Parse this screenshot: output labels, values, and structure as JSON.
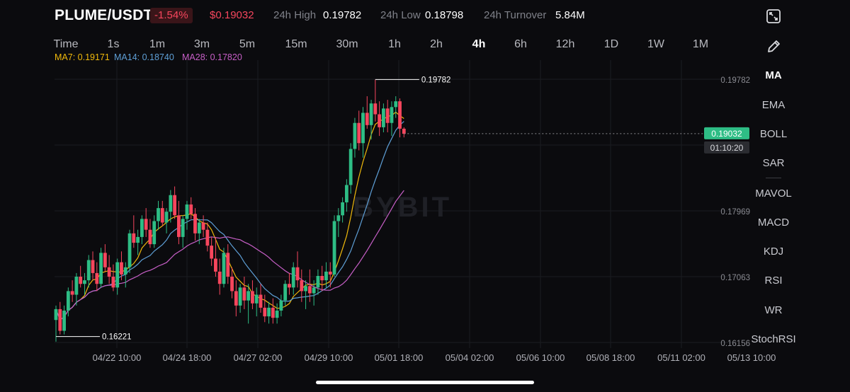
{
  "header": {
    "pair": "PLUME/USDT",
    "change": "-1.54%",
    "price": "$0.19032",
    "high_label": "24h High",
    "high_value": "0.19782",
    "low_label": "24h Low",
    "low_value": "0.18798",
    "turnover_label": "24h Turnover",
    "turnover_value": "5.84M"
  },
  "timeframes": [
    "Time",
    "1s",
    "1m",
    "3m",
    "5m",
    "15m",
    "30m",
    "1h",
    "2h",
    "4h",
    "6h",
    "12h",
    "1D",
    "1W",
    "1M"
  ],
  "active_timeframe": "4h",
  "ma_legend": [
    {
      "label": "MA7: 0.19171",
      "color": "#f0b90b"
    },
    {
      "label": "MA14: 0.18740",
      "color": "#5e9fd6"
    },
    {
      "label": "MA28: 0.17820",
      "color": "#c75fc7"
    }
  ],
  "sidebar": {
    "items": [
      "MA",
      "EMA",
      "BOLL",
      "SAR",
      "MAVOL",
      "MACD",
      "KDJ",
      "RSI",
      "WR",
      "StochRSI"
    ],
    "active": "MA",
    "icons": [
      "expand-icon",
      "pencil-icon"
    ]
  },
  "colors": {
    "up": "#2ebd85",
    "down": "#f6465d",
    "background": "#0b0b0e"
  },
  "chart_data": {
    "type": "candlestick",
    "y_ticks": [
      "0.19782",
      "0.17969",
      "0.17063",
      "0.16156"
    ],
    "x_ticks": [
      "04/22 10:00",
      "04/24 18:00",
      "04/27 02:00",
      "04/29 10:00",
      "05/01 18:00",
      "05/04 02:00",
      "05/06 10:00",
      "05/08 18:00",
      "05/11 02:00",
      "05/13 10:00"
    ],
    "current_price": "0.19032",
    "countdown": "01:10:20",
    "high_marker": "0.19782",
    "low_marker": "0.16221",
    "watermark": "BYBIT",
    "ylim": [
      0.1606,
      0.2005
    ],
    "candles": [
      [
        0.1645,
        0.1665,
        0.1615,
        0.166
      ],
      [
        0.166,
        0.167,
        0.1625,
        0.163
      ],
      [
        0.163,
        0.1665,
        0.1625,
        0.1658
      ],
      [
        0.1658,
        0.169,
        0.165,
        0.1685
      ],
      [
        0.1685,
        0.17,
        0.167,
        0.168
      ],
      [
        0.168,
        0.171,
        0.1665,
        0.1705
      ],
      [
        0.1705,
        0.172,
        0.169,
        0.1695
      ],
      [
        0.1695,
        0.171,
        0.168,
        0.17
      ],
      [
        0.17,
        0.1735,
        0.169,
        0.1728
      ],
      [
        0.1728,
        0.174,
        0.17,
        0.171
      ],
      [
        0.171,
        0.1725,
        0.1685,
        0.1695
      ],
      [
        0.1695,
        0.1745,
        0.169,
        0.1738
      ],
      [
        0.1738,
        0.175,
        0.1712,
        0.1718
      ],
      [
        0.1718,
        0.1735,
        0.1695,
        0.1705
      ],
      [
        0.1705,
        0.1722,
        0.1685,
        0.169
      ],
      [
        0.169,
        0.173,
        0.168,
        0.1725
      ],
      [
        0.1725,
        0.174,
        0.17,
        0.1708
      ],
      [
        0.1708,
        0.1725,
        0.169,
        0.1718
      ],
      [
        0.1718,
        0.177,
        0.171,
        0.1765
      ],
      [
        0.1765,
        0.179,
        0.1745,
        0.1752
      ],
      [
        0.1752,
        0.177,
        0.1735,
        0.176
      ],
      [
        0.176,
        0.179,
        0.175,
        0.1785
      ],
      [
        0.1785,
        0.18,
        0.176,
        0.177
      ],
      [
        0.177,
        0.1785,
        0.1745,
        0.175
      ],
      [
        0.175,
        0.179,
        0.1745,
        0.1782
      ],
      [
        0.1782,
        0.181,
        0.177,
        0.18
      ],
      [
        0.18,
        0.181,
        0.1775,
        0.178
      ],
      [
        0.178,
        0.18,
        0.1765,
        0.1795
      ],
      [
        0.1795,
        0.1825,
        0.178,
        0.1818
      ],
      [
        0.1818,
        0.183,
        0.1785,
        0.179
      ],
      [
        0.179,
        0.181,
        0.175,
        0.176
      ],
      [
        0.176,
        0.179,
        0.1745,
        0.1785
      ],
      [
        0.1785,
        0.181,
        0.177,
        0.1805
      ],
      [
        0.1805,
        0.1815,
        0.1785,
        0.1792
      ],
      [
        0.1792,
        0.18,
        0.1755,
        0.1765
      ],
      [
        0.1765,
        0.1785,
        0.175,
        0.178
      ],
      [
        0.178,
        0.179,
        0.176,
        0.177
      ],
      [
        0.177,
        0.178,
        0.174,
        0.1748
      ],
      [
        0.1748,
        0.176,
        0.172,
        0.173
      ],
      [
        0.173,
        0.176,
        0.1705,
        0.1712
      ],
      [
        0.1712,
        0.173,
        0.168,
        0.1695
      ],
      [
        0.1695,
        0.1745,
        0.169,
        0.1738
      ],
      [
        0.1738,
        0.175,
        0.1695,
        0.1705
      ],
      [
        0.1705,
        0.1718,
        0.1675,
        0.1685
      ],
      [
        0.1685,
        0.17,
        0.165,
        0.1665
      ],
      [
        0.1665,
        0.1695,
        0.1655,
        0.169
      ],
      [
        0.169,
        0.1705,
        0.166,
        0.1672
      ],
      [
        0.1672,
        0.1695,
        0.164,
        0.1685
      ],
      [
        0.1685,
        0.17,
        0.166,
        0.1668
      ],
      [
        0.1668,
        0.169,
        0.165,
        0.168
      ],
      [
        0.168,
        0.1695,
        0.1655,
        0.1662
      ],
      [
        0.1662,
        0.168,
        0.1642,
        0.165
      ],
      [
        0.165,
        0.167,
        0.164,
        0.1662
      ],
      [
        0.1662,
        0.1675,
        0.164,
        0.1648
      ],
      [
        0.1648,
        0.1668,
        0.164,
        0.1658
      ],
      [
        0.1658,
        0.168,
        0.165,
        0.1672
      ],
      [
        0.1672,
        0.17,
        0.1665,
        0.1695
      ],
      [
        0.1695,
        0.171,
        0.168,
        0.169
      ],
      [
        0.169,
        0.1725,
        0.168,
        0.1718
      ],
      [
        0.1718,
        0.174,
        0.169,
        0.17
      ],
      [
        0.17,
        0.1715,
        0.167,
        0.1685
      ],
      [
        0.1685,
        0.17,
        0.166,
        0.1692
      ],
      [
        0.1692,
        0.1715,
        0.167,
        0.1682
      ],
      [
        0.1682,
        0.17,
        0.1665,
        0.169
      ],
      [
        0.169,
        0.1715,
        0.168,
        0.1706
      ],
      [
        0.1706,
        0.172,
        0.1685,
        0.17
      ],
      [
        0.17,
        0.1725,
        0.169,
        0.1712
      ],
      [
        0.1712,
        0.1725,
        0.169,
        0.1708
      ],
      [
        0.1708,
        0.179,
        0.1705,
        0.1782
      ],
      [
        0.1782,
        0.18,
        0.176,
        0.179
      ],
      [
        0.179,
        0.1815,
        0.178,
        0.1808
      ],
      [
        0.1808,
        0.184,
        0.1795,
        0.1832
      ],
      [
        0.1832,
        0.189,
        0.182,
        0.1882
      ],
      [
        0.1882,
        0.1925,
        0.187,
        0.1918
      ],
      [
        0.1918,
        0.1935,
        0.188,
        0.189
      ],
      [
        0.189,
        0.194,
        0.187,
        0.1932
      ],
      [
        0.1932,
        0.1955,
        0.191,
        0.1915
      ],
      [
        0.1915,
        0.195,
        0.1895,
        0.1945
      ],
      [
        0.1945,
        0.1978,
        0.192,
        0.193
      ],
      [
        0.193,
        0.1948,
        0.19,
        0.1912
      ],
      [
        0.1912,
        0.1945,
        0.1905,
        0.1938
      ],
      [
        0.1938,
        0.195,
        0.1905,
        0.1918
      ],
      [
        0.1918,
        0.1948,
        0.19,
        0.194
      ],
      [
        0.194,
        0.1955,
        0.1925,
        0.1948
      ],
      [
        0.1948,
        0.1952,
        0.1898,
        0.191
      ],
      [
        0.191,
        0.1912,
        0.1898,
        0.1903
      ]
    ]
  }
}
